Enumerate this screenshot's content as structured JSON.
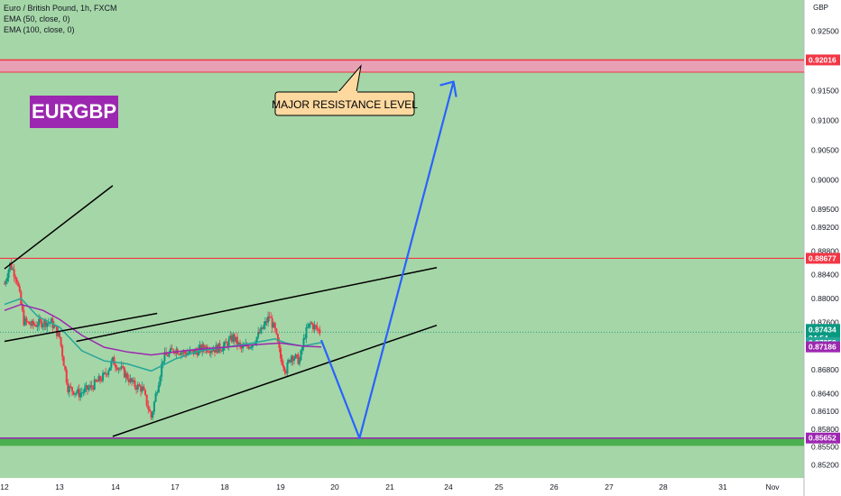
{
  "header": {
    "symbol_line": "Euro / British Pound, 1h, FXCM",
    "indicators": [
      "EMA (50, close, 0)",
      "EMA (100, close, 0)"
    ],
    "currency": "GBP"
  },
  "badge": {
    "text": "EURGBP",
    "color": "#9c27b0"
  },
  "annotation": {
    "text": "MAJOR RESISTANCE LEVEL",
    "fill": "#fdd9a0"
  },
  "colors": {
    "background_green": "#a5d6a7",
    "resistance_zone": "#e8a0b4",
    "support_zone": "#4caf50",
    "resistance_line": "#f23645",
    "support_line": "#9c27b0",
    "ema50": "#26a69a",
    "ema100": "#9c27b0",
    "projection": "#2962ff",
    "trendline": "#000000",
    "up_candle": "#089981",
    "down_candle": "#f23645"
  },
  "chart_data": {
    "type": "candlestick",
    "symbol": "EURGBP",
    "timeframe": "1h",
    "x_tick_labels": [
      "12",
      "13",
      "14",
      "17",
      "18",
      "19",
      "20",
      "21",
      "24",
      "25",
      "26",
      "27",
      "28",
      "31",
      "Nov"
    ],
    "y_tick_labels": [
      "0.92500",
      "0.92000",
      "0.91500",
      "0.91000",
      "0.90500",
      "0.90000",
      "0.89500",
      "0.89200",
      "0.88800",
      "0.88400",
      "0.88000",
      "0.87600",
      "0.87200",
      "0.86800",
      "0.86400",
      "0.86100",
      "0.85800",
      "0.85500",
      "0.85200"
    ],
    "ylim": [
      0.8505,
      0.9268
    ],
    "price_labels": [
      {
        "name": "resistance",
        "value": "0.92016"
      },
      {
        "name": "level",
        "value": "0.88677"
      },
      {
        "name": "last",
        "value": "0.87434"
      },
      {
        "name": "countdown",
        "value": "34:54"
      },
      {
        "name": "ema50",
        "value": "0.87258"
      },
      {
        "name": "ema100",
        "value": "0.87186"
      },
      {
        "name": "support",
        "value": "0.85652"
      }
    ],
    "zones": [
      {
        "name": "resistance",
        "from": 0.9181,
        "to": 0.9202
      },
      {
        "name": "support",
        "from": 0.8552,
        "to": 0.8565
      }
    ],
    "levels": [
      0.92016,
      0.88677,
      0.85652
    ],
    "candles_close_path": [
      [
        0,
        0.8825
      ],
      [
        0.1,
        0.8858
      ],
      [
        0.22,
        0.8835
      ],
      [
        0.35,
        0.8762
      ],
      [
        0.5,
        0.8755
      ],
      [
        0.7,
        0.876
      ],
      [
        0.85,
        0.876
      ],
      [
        1.0,
        0.8735
      ],
      [
        1.15,
        0.865
      ],
      [
        1.35,
        0.864
      ],
      [
        1.55,
        0.865
      ],
      [
        1.8,
        0.867
      ],
      [
        1.95,
        0.8695
      ],
      [
        2.1,
        0.868
      ],
      [
        2.3,
        0.8655
      ],
      [
        2.45,
        0.8648
      ],
      [
        2.6,
        0.86
      ],
      [
        2.7,
        0.865
      ],
      [
        2.8,
        0.87
      ],
      [
        3.0,
        0.8715
      ],
      [
        3.2,
        0.8708
      ],
      [
        3.4,
        0.871
      ],
      [
        3.6,
        0.8718
      ],
      [
        3.8,
        0.8715
      ],
      [
        4.0,
        0.872
      ],
      [
        4.15,
        0.8735
      ],
      [
        4.3,
        0.8715
      ],
      [
        4.5,
        0.8725
      ],
      [
        4.65,
        0.8745
      ],
      [
        4.8,
        0.877
      ],
      [
        4.9,
        0.8745
      ],
      [
        5.0,
        0.87
      ],
      [
        5.1,
        0.868
      ],
      [
        5.2,
        0.8705
      ],
      [
        5.35,
        0.8695
      ],
      [
        5.45,
        0.874
      ],
      [
        5.55,
        0.8758
      ],
      [
        5.65,
        0.875
      ],
      [
        5.75,
        0.8743
      ]
    ],
    "ema50": [
      [
        0,
        0.879
      ],
      [
        0.3,
        0.88
      ],
      [
        0.6,
        0.877
      ],
      [
        1.0,
        0.8752
      ],
      [
        1.4,
        0.8712
      ],
      [
        1.8,
        0.8695
      ],
      [
        2.2,
        0.869
      ],
      [
        2.6,
        0.8678
      ],
      [
        3.0,
        0.8698
      ],
      [
        3.5,
        0.8712
      ],
      [
        4.0,
        0.8718
      ],
      [
        4.5,
        0.8725
      ],
      [
        4.9,
        0.8732
      ],
      [
        5.1,
        0.8725
      ],
      [
        5.4,
        0.872
      ],
      [
        5.75,
        0.87258
      ]
    ],
    "ema100": [
      [
        0,
        0.878
      ],
      [
        0.3,
        0.879
      ],
      [
        0.7,
        0.878
      ],
      [
        1.0,
        0.8765
      ],
      [
        1.4,
        0.8738
      ],
      [
        1.8,
        0.8718
      ],
      [
        2.2,
        0.871
      ],
      [
        2.6,
        0.8705
      ],
      [
        3.0,
        0.871
      ],
      [
        3.5,
        0.8715
      ],
      [
        4.0,
        0.8718
      ],
      [
        4.5,
        0.8722
      ],
      [
        5.0,
        0.8725
      ],
      [
        5.4,
        0.872
      ],
      [
        5.75,
        0.87186
      ]
    ],
    "trendlines": [
      [
        [
          0.0,
          0.885
        ],
        [
          1.95,
          0.899
        ]
      ],
      [
        [
          0.0,
          0.8728
        ],
        [
          2.7,
          0.8775
        ]
      ],
      [
        [
          1.3,
          0.8728
        ],
        [
          7.8,
          0.8852
        ]
      ],
      [
        [
          1.95,
          0.8568
        ],
        [
          7.8,
          0.8755
        ]
      ]
    ],
    "projection": [
      [
        5.75,
        0.873
      ],
      [
        6.45,
        0.8565
      ],
      [
        8.1,
        0.9165
      ]
    ]
  }
}
